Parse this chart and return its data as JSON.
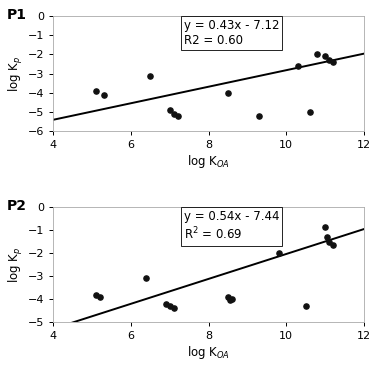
{
  "p1": {
    "label": "P1",
    "equation": "y = 0.43x - 7.12",
    "r2": "R2 = 0.60",
    "slope": 0.43,
    "intercept": -7.12,
    "scatter_x": [
      5.1,
      5.3,
      6.5,
      7.0,
      7.1,
      7.2,
      8.5,
      9.3,
      10.3,
      10.6,
      10.8,
      11.0,
      11.1,
      11.2
    ],
    "scatter_y": [
      -3.9,
      -4.1,
      -3.1,
      -4.9,
      -5.1,
      -5.2,
      -4.0,
      -5.2,
      -2.6,
      -5.0,
      -2.0,
      -2.1,
      -2.3,
      -2.4
    ],
    "xlim": [
      4,
      12
    ],
    "ylim": [
      -6,
      0
    ],
    "xticks": [
      4,
      6,
      8,
      10,
      12
    ],
    "yticks": [
      0,
      -1,
      -2,
      -3,
      -4,
      -5,
      -6
    ],
    "xlabel": "log K$_{OA}$",
    "ylabel": "log K$_p$"
  },
  "p2": {
    "label": "P2",
    "equation": "y = 0.54x - 7.44",
    "r2": "R$^2$ = 0.69",
    "slope": 0.54,
    "intercept": -7.44,
    "scatter_x": [
      5.1,
      5.2,
      6.4,
      6.9,
      7.0,
      7.1,
      8.5,
      8.6,
      8.55,
      9.8,
      10.5,
      11.0,
      11.05,
      11.1,
      11.2
    ],
    "scatter_y": [
      -3.8,
      -3.9,
      -3.1,
      -4.2,
      -4.3,
      -4.4,
      -3.9,
      -4.0,
      -4.05,
      -2.0,
      -4.3,
      -0.85,
      -1.3,
      -1.5,
      -1.65
    ],
    "xlim": [
      4,
      12
    ],
    "ylim": [
      -5,
      0
    ],
    "xticks": [
      4,
      6,
      8,
      10,
      12
    ],
    "yticks": [
      0,
      -1,
      -2,
      -3,
      -4,
      -5
    ],
    "xlabel": "log K$_{OA}$",
    "ylabel": "log K$_p$"
  },
  "line_color": "#000000",
  "scatter_color": "#111111",
  "bg_color": "#ffffff",
  "fig_bg_color": "#ffffff",
  "annotation_fontsize": 8.5,
  "axis_label_fontsize": 8.5,
  "tick_fontsize": 8,
  "panel_label_fontsize": 10
}
